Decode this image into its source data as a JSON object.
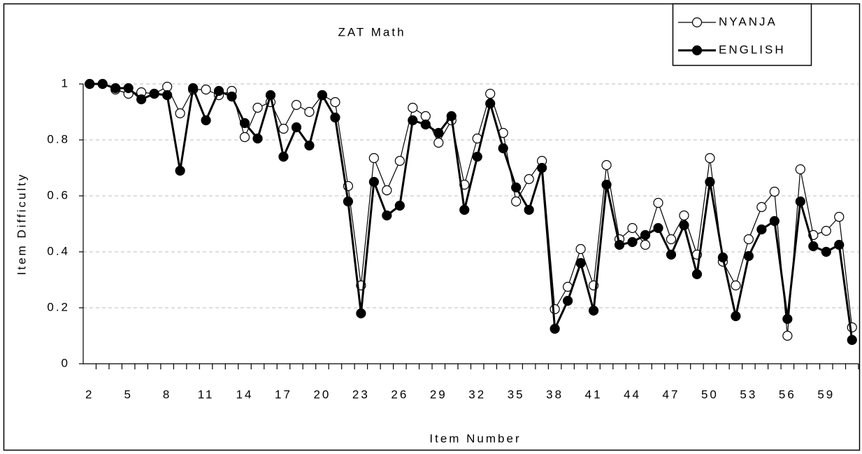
{
  "chart_data": {
    "type": "line",
    "title": "ZAT Math",
    "x_label": "Item Number",
    "y_label": "Item Difficulty",
    "categories": [
      "2",
      null,
      null,
      "5",
      null,
      null,
      "8",
      null,
      null,
      "11",
      null,
      null,
      "14",
      null,
      null,
      "17",
      null,
      null,
      "20",
      null,
      null,
      "23",
      null,
      null,
      "26",
      null,
      null,
      "29",
      null,
      null,
      "32",
      null,
      null,
      "35",
      null,
      null,
      "38",
      null,
      null,
      "41",
      null,
      null,
      "44",
      null,
      null,
      "47",
      null,
      null,
      "50",
      null,
      null,
      "53",
      null,
      null,
      "56",
      null,
      null,
      "59",
      null,
      null
    ],
    "series": [
      {
        "name": "NYANJA",
        "color": "#000000",
        "marker_fill": "#ffffff",
        "line_width": 1.2,
        "values": [
          1.0,
          1.0,
          0.98,
          0.965,
          0.97,
          0.965,
          0.99,
          0.895,
          0.98,
          0.98,
          0.96,
          0.975,
          0.81,
          0.915,
          0.935,
          0.84,
          0.925,
          0.9,
          0.96,
          0.935,
          0.635,
          0.28,
          0.735,
          0.62,
          0.725,
          0.915,
          0.885,
          0.79,
          0.87,
          0.64,
          0.805,
          0.965,
          0.825,
          0.58,
          0.66,
          0.725,
          0.195,
          0.275,
          0.41,
          0.28,
          0.71,
          0.445,
          0.485,
          0.425,
          0.575,
          0.445,
          0.53,
          0.39,
          0.735,
          0.365,
          0.28,
          0.445,
          0.56,
          0.615,
          0.1,
          0.695,
          0.46,
          0.475,
          0.525,
          0.13
        ]
      },
      {
        "name": "ENGLISH",
        "color": "#000000",
        "marker_fill": "#000000",
        "line_width": 3,
        "values": [
          1.0,
          1.0,
          0.985,
          0.985,
          0.945,
          0.965,
          0.96,
          0.69,
          0.985,
          0.87,
          0.975,
          0.955,
          0.86,
          0.805,
          0.96,
          0.74,
          0.845,
          0.78,
          0.96,
          0.88,
          0.58,
          0.18,
          0.65,
          0.53,
          0.565,
          0.87,
          0.855,
          0.825,
          0.885,
          0.55,
          0.74,
          0.93,
          0.77,
          0.63,
          0.55,
          0.7,
          0.125,
          0.225,
          0.36,
          0.19,
          0.64,
          0.425,
          0.435,
          0.46,
          0.485,
          0.39,
          0.495,
          0.32,
          0.65,
          0.38,
          0.17,
          0.385,
          0.48,
          0.51,
          0.16,
          0.58,
          0.42,
          0.4,
          0.425,
          0.085
        ]
      }
    ],
    "ylim": [
      0,
      1
    ],
    "yticks": [
      0,
      0.2,
      0.4,
      0.6,
      0.8,
      1
    ],
    "grid": true,
    "legend": "top-right"
  }
}
